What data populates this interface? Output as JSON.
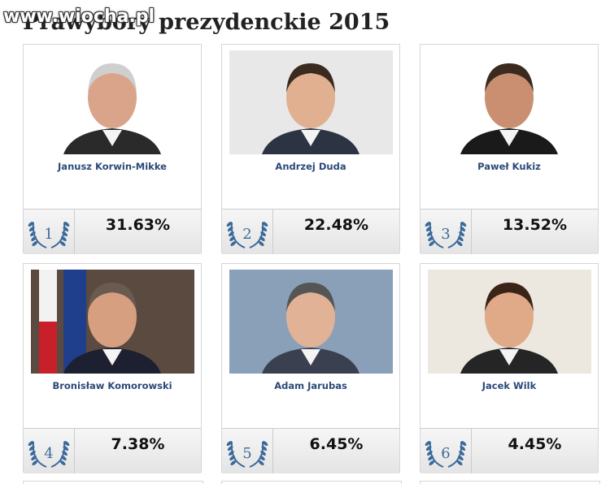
{
  "header": {
    "title": "Prawybory prezydenckie 2015",
    "watermark": "www.wiocha.pl"
  },
  "candidates": [
    {
      "rank": "1",
      "name": "Janusz Korwin-Mikke",
      "result": "31.63%"
    },
    {
      "rank": "2",
      "name": "Andrzej Duda",
      "result": "22.48%"
    },
    {
      "rank": "3",
      "name": "Paweł Kukiz",
      "result": "13.52%"
    },
    {
      "rank": "4",
      "name": "Bronisław Komorowski",
      "result": "7.38%"
    },
    {
      "rank": "5",
      "name": "Adam Jarubas",
      "result": "6.45%"
    },
    {
      "rank": "6",
      "name": "Jacek Wilk",
      "result": "4.45%"
    }
  ]
}
